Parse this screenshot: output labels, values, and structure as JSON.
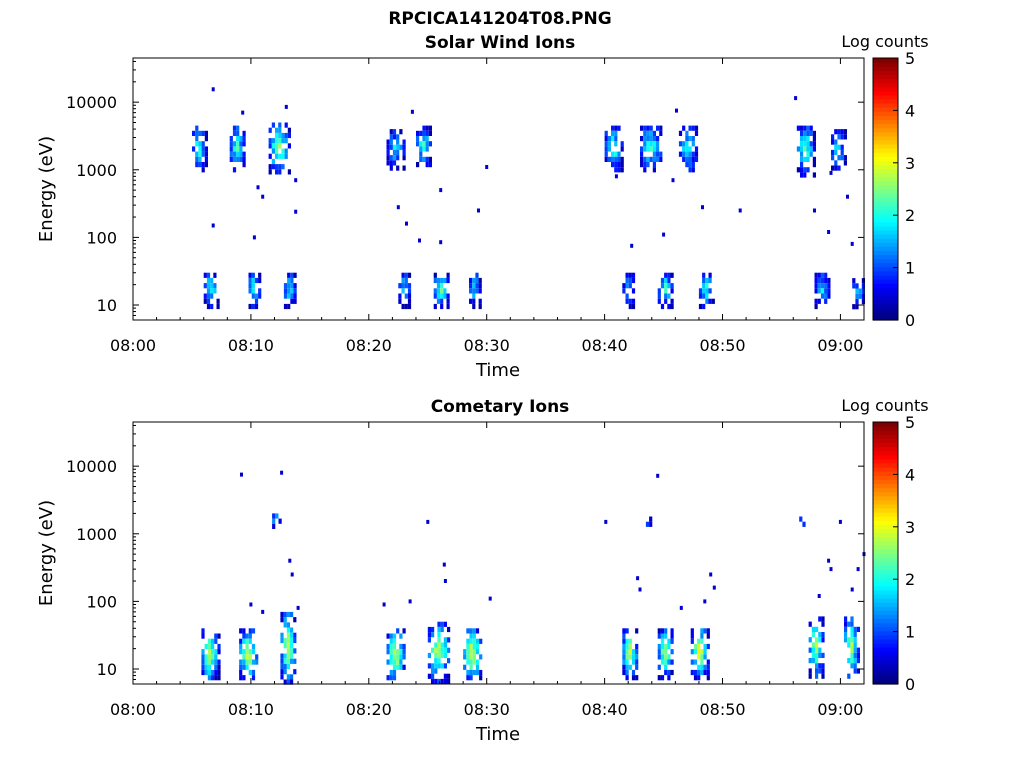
{
  "figure_title": "RPCICA141204T08.PNG",
  "chart_data": [
    {
      "type": "heatmap",
      "title": "Solar Wind Ions",
      "xlabel": "Time",
      "ylabel": "Energy (eV)",
      "x_ticks": [
        "08:00",
        "08:10",
        "08:20",
        "08:30",
        "08:40",
        "08:50",
        "09:00"
      ],
      "y_ticks": [
        "10",
        "100",
        "1000",
        "10000"
      ],
      "y_scale": "log",
      "ylim": [
        6,
        45000
      ],
      "xlim_minutes": [
        0,
        62
      ],
      "colorbar": {
        "label": "Log counts",
        "ticks": [
          "0",
          "1",
          "2",
          "3",
          "4",
          "5"
        ],
        "range": [
          0,
          5
        ],
        "colormap": "jet"
      },
      "clusters": [
        {
          "t": [
            5.0,
            6.2
          ],
          "e": [
            1000,
            4500
          ],
          "peak": 2.2
        },
        {
          "t": [
            8.2,
            9.5
          ],
          "e": [
            1000,
            4500
          ],
          "peak": 2.2
        },
        {
          "t": [
            11.5,
            13.2
          ],
          "e": [
            900,
            5000
          ],
          "peak": 2.6
        },
        {
          "t": [
            21.5,
            23.0
          ],
          "e": [
            1100,
            4000
          ],
          "peak": 1.8
        },
        {
          "t": [
            24.0,
            25.3
          ],
          "e": [
            1100,
            4500
          ],
          "peak": 2.2
        },
        {
          "t": [
            40.0,
            41.5
          ],
          "e": [
            1000,
            4500
          ],
          "peak": 2.2
        },
        {
          "t": [
            43.0,
            44.8
          ],
          "e": [
            1000,
            4500
          ],
          "peak": 2.2
        },
        {
          "t": [
            46.3,
            47.8
          ],
          "e": [
            1000,
            4500
          ],
          "peak": 2.0
        },
        {
          "t": [
            56.3,
            57.8
          ],
          "e": [
            900,
            4500
          ],
          "peak": 2.4
        },
        {
          "t": [
            59.2,
            60.3
          ],
          "e": [
            1000,
            4000
          ],
          "peak": 2.0
        },
        {
          "t": [
            6.0,
            7.2
          ],
          "e": [
            10,
            30
          ],
          "peak": 2.2
        },
        {
          "t": [
            9.8,
            10.8
          ],
          "e": [
            10,
            30
          ],
          "peak": 2.2
        },
        {
          "t": [
            12.8,
            13.8
          ],
          "e": [
            10,
            30
          ],
          "peak": 2.0
        },
        {
          "t": [
            22.5,
            23.5
          ],
          "e": [
            10,
            30
          ],
          "peak": 1.8
        },
        {
          "t": [
            25.5,
            26.8
          ],
          "e": [
            10,
            30
          ],
          "peak": 2.4
        },
        {
          "t": [
            28.5,
            29.5
          ],
          "e": [
            10,
            30
          ],
          "peak": 1.8
        },
        {
          "t": [
            41.5,
            42.5
          ],
          "e": [
            10,
            30
          ],
          "peak": 1.8
        },
        {
          "t": [
            44.5,
            45.8
          ],
          "e": [
            10,
            30
          ],
          "peak": 2.2
        },
        {
          "t": [
            48.0,
            49.2
          ],
          "e": [
            10,
            30
          ],
          "peak": 2.2
        },
        {
          "t": [
            57.8,
            59.0
          ],
          "e": [
            10,
            30
          ],
          "peak": 1.8
        },
        {
          "t": [
            61.0,
            62.0
          ],
          "e": [
            10,
            25
          ],
          "peak": 1.6
        }
      ],
      "scatter_points": [
        [
          6.8,
          15500
        ],
        [
          9.3,
          7000
        ],
        [
          13.0,
          8500
        ],
        [
          23.7,
          7200
        ],
        [
          46.1,
          7500
        ],
        [
          56.2,
          11500
        ],
        [
          10.6,
          550
        ],
        [
          11.0,
          400
        ],
        [
          13.8,
          700
        ],
        [
          26.1,
          500
        ],
        [
          30.0,
          1100
        ],
        [
          41.0,
          800
        ],
        [
          45.8,
          700
        ],
        [
          51.5,
          250
        ],
        [
          48.3,
          280
        ],
        [
          59.2,
          900
        ],
        [
          60.6,
          400
        ],
        [
          29.3,
          250
        ],
        [
          22.5,
          280
        ],
        [
          23.2,
          160
        ],
        [
          6.8,
          150
        ],
        [
          10.3,
          100
        ],
        [
          13.8,
          240
        ],
        [
          24.3,
          90
        ],
        [
          26.1,
          85
        ],
        [
          42.3,
          75
        ],
        [
          45.0,
          110
        ],
        [
          57.8,
          250
        ],
        [
          59.0,
          120
        ],
        [
          61.0,
          80
        ]
      ]
    },
    {
      "type": "heatmap",
      "title": "Cometary Ions",
      "xlabel": "Time",
      "ylabel": "Energy (eV)",
      "x_ticks": [
        "08:00",
        "08:10",
        "08:20",
        "08:30",
        "08:40",
        "08:50",
        "09:00"
      ],
      "y_ticks": [
        "10",
        "100",
        "1000",
        "10000"
      ],
      "y_scale": "log",
      "ylim": [
        6,
        45000
      ],
      "xlim_minutes": [
        0,
        62
      ],
      "colorbar": {
        "label": "Log counts",
        "ticks": [
          "0",
          "1",
          "2",
          "3",
          "4",
          "5"
        ],
        "range": [
          0,
          5
        ],
        "colormap": "jet"
      },
      "clusters": [
        {
          "t": [
            5.8,
            7.2
          ],
          "e": [
            7,
            40
          ],
          "peak": 3.0
        },
        {
          "t": [
            9.0,
            10.6
          ],
          "e": [
            7,
            40
          ],
          "peak": 3.0
        },
        {
          "t": [
            12.5,
            13.8
          ],
          "e": [
            7,
            70
          ],
          "peak": 3.0
        },
        {
          "t": [
            21.5,
            23.0
          ],
          "e": [
            7,
            40
          ],
          "peak": 3.2
        },
        {
          "t": [
            25.0,
            26.8
          ],
          "e": [
            7,
            50
          ],
          "peak": 3.0
        },
        {
          "t": [
            28.0,
            29.5
          ],
          "e": [
            7,
            40
          ],
          "peak": 3.2
        },
        {
          "t": [
            41.5,
            42.8
          ],
          "e": [
            8,
            40
          ],
          "peak": 3.0
        },
        {
          "t": [
            44.5,
            45.8
          ],
          "e": [
            8,
            40
          ],
          "peak": 2.8
        },
        {
          "t": [
            47.3,
            48.8
          ],
          "e": [
            8,
            40
          ],
          "peak": 3.2
        },
        {
          "t": [
            57.3,
            58.5
          ],
          "e": [
            8,
            60
          ],
          "peak": 2.8
        },
        {
          "t": [
            60.3,
            61.5
          ],
          "e": [
            8,
            60
          ],
          "peak": 2.8
        },
        {
          "t": [
            11.8,
            12.5
          ],
          "e": [
            1300,
            2000
          ],
          "peak": 2.0
        },
        {
          "t": [
            43.5,
            43.8
          ],
          "e": [
            1300,
            1800
          ],
          "peak": 1.8
        },
        {
          "t": [
            56.5,
            56.9
          ],
          "e": [
            1300,
            1800
          ],
          "peak": 1.8
        }
      ],
      "scatter_points": [
        [
          9.2,
          7500
        ],
        [
          12.6,
          8000
        ],
        [
          44.5,
          7200
        ],
        [
          25.0,
          1500
        ],
        [
          40.1,
          1500
        ],
        [
          60.0,
          1500
        ],
        [
          13.3,
          400
        ],
        [
          13.5,
          250
        ],
        [
          26.4,
          350
        ],
        [
          26.5,
          200
        ],
        [
          42.8,
          220
        ],
        [
          43.0,
          150
        ],
        [
          49.0,
          250
        ],
        [
          49.3,
          160
        ],
        [
          59.0,
          400
        ],
        [
          59.2,
          300
        ],
        [
          61.5,
          300
        ],
        [
          62.0,
          500
        ],
        [
          21.3,
          90
        ],
        [
          23.5,
          100
        ],
        [
          10.0,
          90
        ],
        [
          11.0,
          70
        ],
        [
          14.0,
          80
        ],
        [
          30.3,
          110
        ],
        [
          48.5,
          100
        ],
        [
          61.0,
          150
        ],
        [
          46.5,
          80
        ],
        [
          58.2,
          120
        ]
      ]
    }
  ]
}
